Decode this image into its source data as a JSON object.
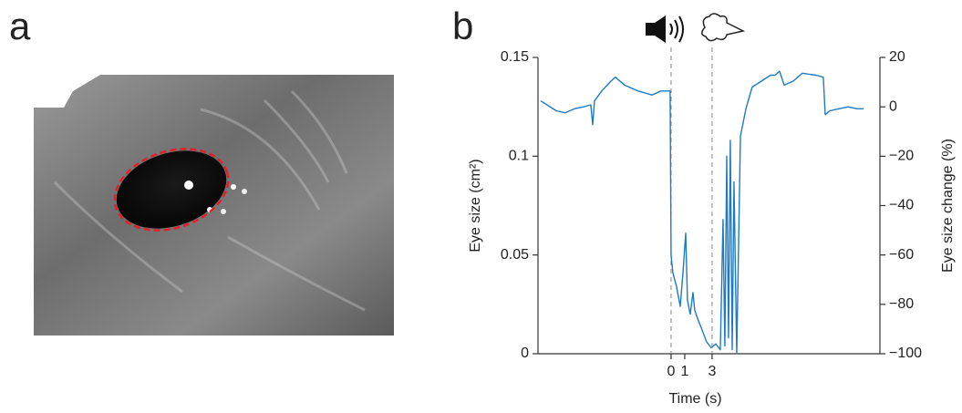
{
  "panels": [
    "a",
    "b"
  ],
  "chart_data": {
    "type": "line",
    "x_label": "Time (s)",
    "y_label": "Eye size (cm²)",
    "y2_label": "Eye size change (%)",
    "x": [
      -9.53,
      -9.07,
      -8.4,
      -7.73,
      -7.07,
      -6.4,
      -5.87,
      -5.73,
      -5.6,
      -5.07,
      -4.4,
      -4.07,
      -3.4,
      -2.4,
      -1.4,
      -0.73,
      -0.07,
      0,
      0.13,
      0.4,
      0.67,
      0.87,
      1.07,
      1.2,
      1.4,
      1.6,
      1.73,
      1.93,
      2.27,
      2.6,
      2.93,
      3.27,
      3.6,
      3.8,
      3.93,
      4.07,
      4.2,
      4.33,
      4.47,
      4.6,
      4.8,
      5.07,
      5.47,
      5.93,
      6.6,
      7.27,
      7.6,
      7.93,
      8.27,
      8.93,
      9.6,
      10.6,
      11.13,
      11.27,
      11.6,
      12.27,
      12.93,
      13.6,
      14.07
    ],
    "series": [
      {
        "color": "#1f7bbf",
        "values": [
          0.128,
          0.126,
          0.123,
          0.122,
          0.124,
          0.125,
          0.126,
          0.116,
          0.128,
          0.133,
          0.138,
          0.14,
          0.136,
          0.133,
          0.131,
          0.133,
          0.133,
          0.05,
          0.041,
          0.034,
          0.024,
          0.041,
          0.061,
          0.027,
          0.02,
          0.031,
          0.022,
          0.018,
          0.012,
          0.006,
          0.003,
          0.005,
          0.002,
          0.068,
          0.004,
          0.1,
          0.008,
          0.108,
          0.002,
          0.087,
          0,
          0.11,
          0.124,
          0.135,
          0.138,
          0.141,
          0.141,
          0.143,
          0.136,
          0.138,
          0.142,
          0.141,
          0.14,
          0.121,
          0.123,
          0.124,
          0.125,
          0.124,
          0.124
        ]
      }
    ],
    "event_lines": [
      0,
      3
    ],
    "xlim": [
      -9.73,
      15.27
    ],
    "xticks": [
      0,
      1,
      3
    ],
    "ylim": [
      0,
      0.15
    ],
    "yticks": [
      0,
      0.05,
      0.1,
      0.15
    ],
    "y2lim": [
      -100,
      20
    ],
    "y2ticks": [
      {
        "value": -100,
        "label": "−100"
      },
      {
        "value": -80,
        "label": "−80"
      },
      {
        "value": -60,
        "label": "−60"
      },
      {
        "value": -40,
        "label": "−40"
      },
      {
        "value": -20,
        "label": "−20"
      },
      0,
      20
    ]
  }
}
